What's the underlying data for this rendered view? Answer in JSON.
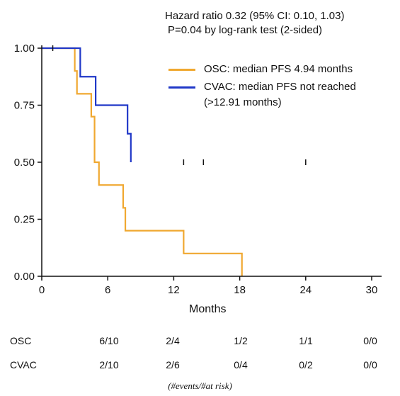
{
  "chart_data": {
    "type": "line",
    "xlabel": "Months",
    "ylabel": "",
    "xlim": [
      0,
      30
    ],
    "ylim": [
      0,
      1
    ],
    "xticks": [
      "0",
      "6",
      "12",
      "18",
      "24",
      "30"
    ],
    "yticks": [
      "0.00",
      "0.25",
      "0.50",
      "0.75",
      "1.00"
    ],
    "annotation_lines": [
      "Hazard ratio 0.32 (95% CI: 0.10, 1.03)",
      "P=0.04 by log-rank test (2-sided)"
    ],
    "series": [
      {
        "name": "OSC: median PFS 4.94 months",
        "color": "#f0a830",
        "x": [
          0,
          3,
          3.2,
          4.5,
          4.8,
          5.2,
          7.4,
          7.6,
          12.9,
          18.2
        ],
        "y": [
          1.0,
          0.9,
          0.8,
          0.7,
          0.5,
          0.4,
          0.3,
          0.2,
          0.1,
          0.0
        ],
        "censored_x": []
      },
      {
        "name": "CVAC: median PFS not reached",
        "name_line2": "(>12.91 months)",
        "color": "#2038c8",
        "x": [
          0,
          3.5,
          4.9,
          7.8,
          8.1
        ],
        "y": [
          1.0,
          0.875,
          0.75,
          0.625,
          0.5
        ],
        "censored_x": [
          1.0,
          12.9,
          14.7,
          24.0
        ]
      }
    ]
  },
  "risk_table": {
    "rows": [
      {
        "label": "OSC",
        "values": [
          "6/10",
          "2/4",
          "1/2",
          "1/1",
          "0/0"
        ]
      },
      {
        "label": "CVAC",
        "values": [
          "2/10",
          "2/6",
          "0/4",
          "0/2",
          "0/0"
        ]
      }
    ],
    "footnote": "(#events/#at risk)"
  }
}
